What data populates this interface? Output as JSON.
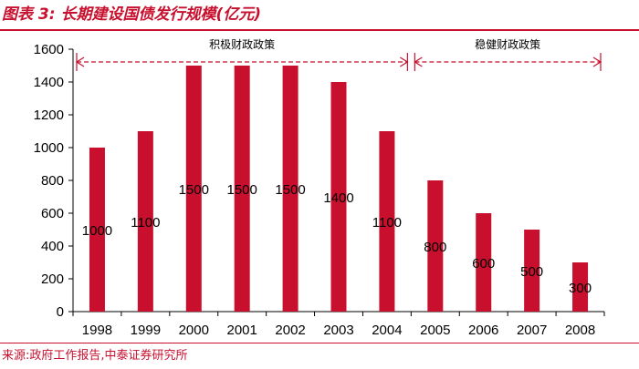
{
  "header": {
    "title": "图表 3:  长期建设国债发行规模(亿元)"
  },
  "footer": {
    "source": "来源:政府工作报告,中泰证券研究所"
  },
  "chart_data": {
    "type": "bar",
    "title": "长期建设国债发行规模(亿元)",
    "xlabel": "",
    "ylabel": "",
    "categories": [
      "1998",
      "1999",
      "2000",
      "2001",
      "2002",
      "2003",
      "2004",
      "2005",
      "2006",
      "2007",
      "2008"
    ],
    "values": [
      1000,
      1100,
      1500,
      1500,
      1500,
      1400,
      1100,
      800,
      600,
      500,
      300
    ],
    "data_labels": [
      "1000",
      "1100",
      "1500",
      "1500",
      "1500",
      "1400",
      "1100",
      "800",
      "600",
      "500",
      "300"
    ],
    "ylim": [
      0,
      1600
    ],
    "yticks": [
      0,
      200,
      400,
      600,
      800,
      1000,
      1200,
      1400,
      1600
    ],
    "bar_color": "#c8102e",
    "grid": false,
    "legend": "none",
    "annotations": [
      {
        "label": "积极财政政策",
        "from": "1998",
        "to": "2004"
      },
      {
        "label": "稳健财政政策",
        "from": "2005",
        "to": "2008"
      }
    ]
  }
}
